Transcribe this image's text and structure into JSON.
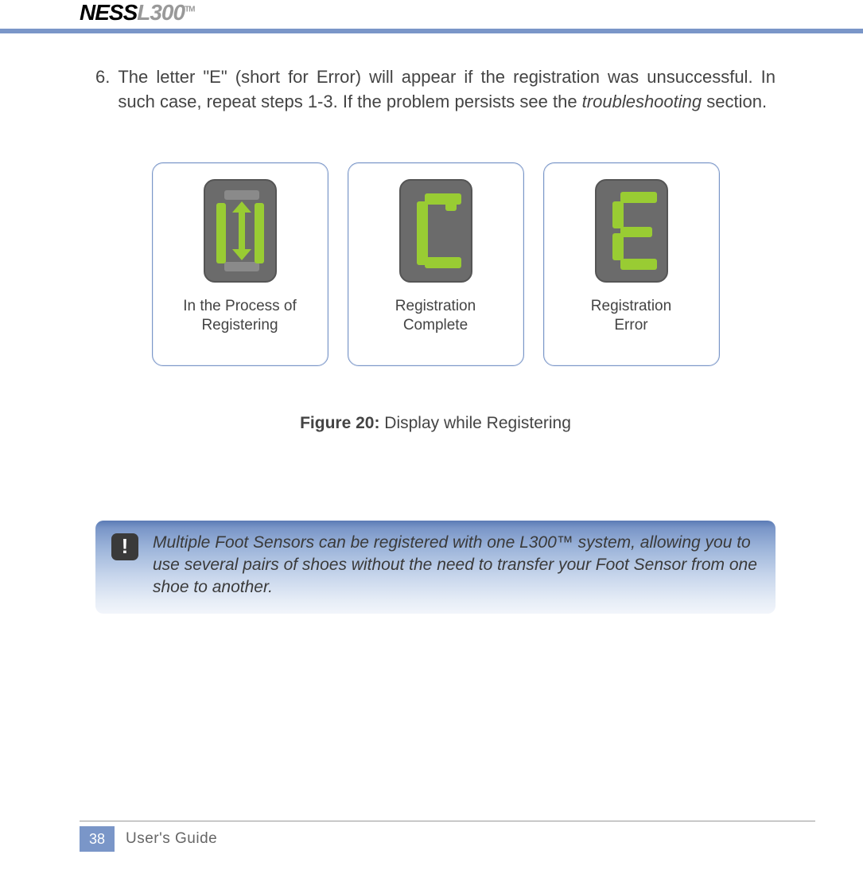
{
  "header": {
    "logo_ness": "NESS",
    "logo_model": "L300",
    "logo_tm": "TM"
  },
  "body": {
    "list_number": "6.",
    "list_text_pre": "The letter \"E\" (short for Error) will appear if the registration was unsuccessful. In such case, repeat steps 1-3. If the problem persists see the ",
    "list_text_italic": "troubleshooting",
    "list_text_post": " section."
  },
  "cards": [
    {
      "label_line1": "In the Process of",
      "label_line2": "Registering"
    },
    {
      "label_line1": "Registration",
      "label_line2": "Complete"
    },
    {
      "label_line1": "Registration",
      "label_line2": "Error"
    }
  ],
  "figure": {
    "caption_label": "Figure 20:",
    "caption_text": " Display while Registering"
  },
  "note": {
    "icon": "!",
    "text": "Multiple Foot Sensors can be registered with one L300™ system, allowing you to use several pairs of shoes without the need to transfer your Foot Sensor from one shoe to another."
  },
  "footer": {
    "page": "38",
    "label": "User's Guide"
  },
  "colors": {
    "accent": "#7a96c8",
    "segment_on": "#99cc33",
    "segment_off": "#8a8a8a",
    "display_bg": "#6b6b6b"
  }
}
